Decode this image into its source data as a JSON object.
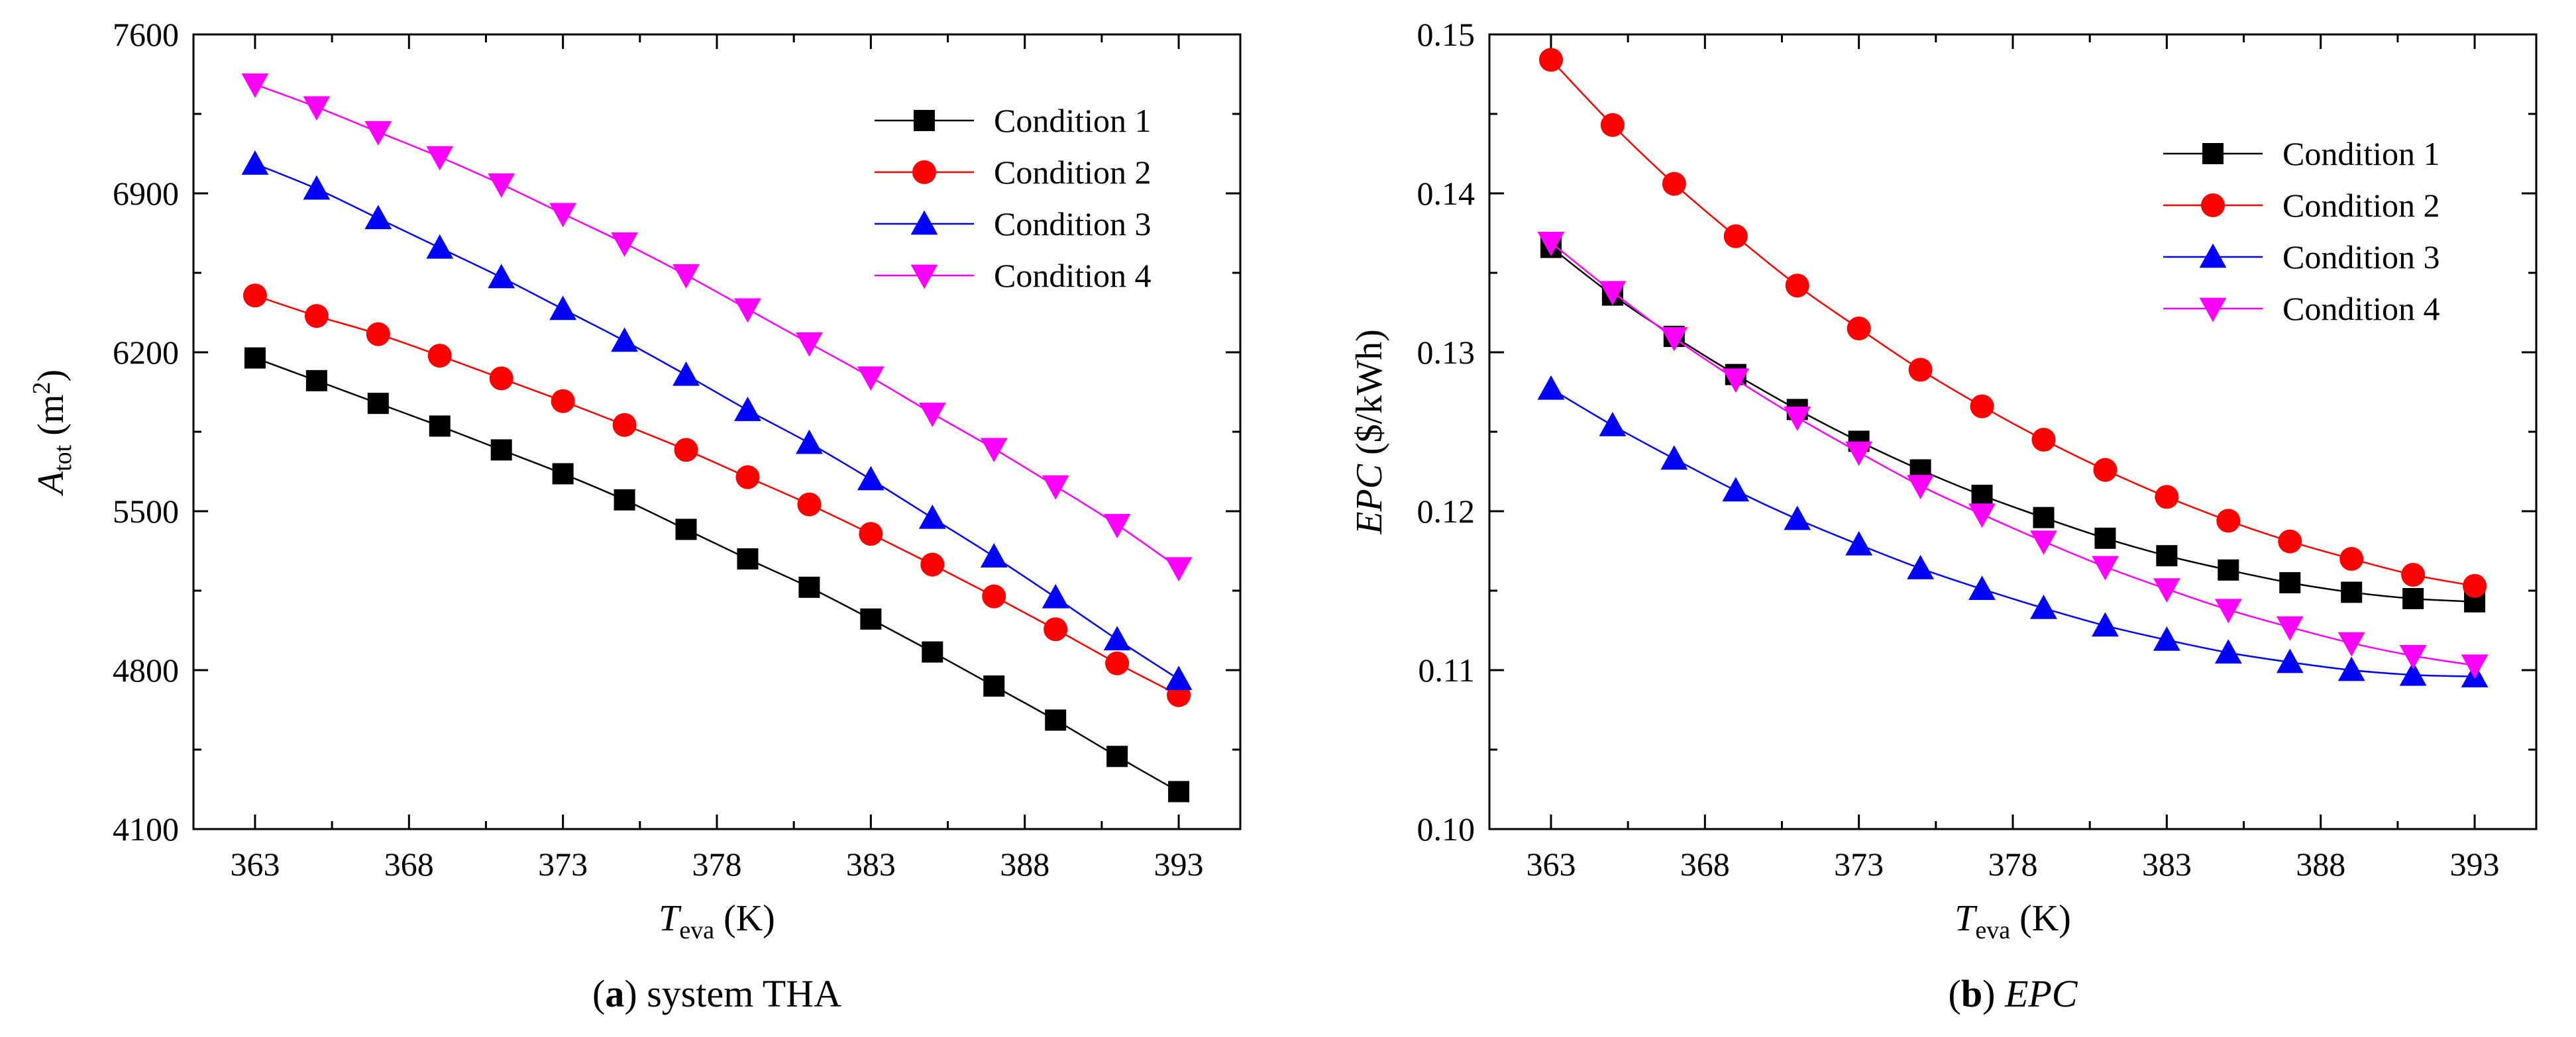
{
  "figure": {
    "panels": [
      {
        "caption": {
          "letter": "a",
          "text": "system THA",
          "text_italic": false
        },
        "ylabel": {
          "main": "A",
          "sub": "tot",
          "unit_prefix": " (m",
          "unit_sup": "2",
          "unit_suffix": ")"
        },
        "xlabel": {
          "main": "T",
          "sub": "eva",
          "unit": " (K)"
        }
      },
      {
        "caption": {
          "letter": "b",
          "text": "EPC",
          "text_italic": true
        },
        "ylabel": {
          "main": "EPC",
          "sub": "",
          "unit_prefix": " ($/kWh)",
          "unit_sup": "",
          "unit_suffix": ""
        },
        "xlabel": {
          "main": "T",
          "sub": "eva",
          "unit": " (K)"
        }
      }
    ]
  },
  "chart_data": [
    {
      "type": "line",
      "title": "",
      "xlabel": "T_eva (K)",
      "ylabel": "A_tot (m^2)",
      "xlim": [
        361,
        395
      ],
      "ylim": [
        4100,
        7600
      ],
      "xticks": [
        363,
        368,
        373,
        378,
        383,
        388,
        393
      ],
      "yticks": [
        4100,
        4800,
        5500,
        6200,
        6900,
        7600
      ],
      "ytick_decimals": 0,
      "legend_position": "top-right",
      "grid": false,
      "x": [
        363,
        365,
        367,
        369,
        371,
        373,
        375,
        377,
        379,
        381,
        383,
        385,
        387,
        389,
        391,
        393
      ],
      "series": [
        {
          "name": "Condition 1",
          "marker": "square",
          "color": "#000000",
          "values": [
            6175,
            6075,
            5975,
            5875,
            5770,
            5665,
            5550,
            5420,
            5290,
            5165,
            5025,
            4880,
            4730,
            4580,
            4420,
            4265
          ]
        },
        {
          "name": "Condition 2",
          "marker": "circle",
          "color": "#ff0000",
          "values": [
            6450,
            6360,
            6280,
            6185,
            6085,
            5985,
            5880,
            5770,
            5650,
            5530,
            5400,
            5265,
            5125,
            4980,
            4830,
            4690
          ]
        },
        {
          "name": "Condition 3",
          "marker": "triangle-up",
          "color": "#0000ff",
          "values": [
            7030,
            6920,
            6790,
            6660,
            6530,
            6390,
            6250,
            6100,
            5945,
            5800,
            5640,
            5470,
            5300,
            5120,
            4935,
            4760
          ]
        },
        {
          "name": "Condition 4",
          "marker": "triangle-down",
          "color": "#ff00ff",
          "values": [
            7380,
            7280,
            7170,
            7060,
            6940,
            6810,
            6680,
            6540,
            6390,
            6240,
            6090,
            5930,
            5775,
            5610,
            5440,
            5250
          ]
        }
      ]
    },
    {
      "type": "line",
      "title": "",
      "xlabel": "T_eva (K)",
      "ylabel": "EPC ($/kWh)",
      "xlim": [
        361,
        395
      ],
      "ylim": [
        0.1,
        0.15
      ],
      "xticks": [
        363,
        368,
        373,
        378,
        383,
        388,
        393
      ],
      "yticks": [
        0.1,
        0.11,
        0.12,
        0.13,
        0.14,
        0.15
      ],
      "ytick_decimals": 2,
      "legend_position": "top-right",
      "grid": false,
      "x": [
        363,
        365,
        367,
        369,
        371,
        373,
        375,
        377,
        379,
        381,
        383,
        385,
        387,
        389,
        391,
        393
      ],
      "series": [
        {
          "name": "Condition 1",
          "marker": "square",
          "color": "#000000",
          "values": [
            0.1366,
            0.1336,
            0.131,
            0.1286,
            0.1264,
            0.1244,
            0.1226,
            0.121,
            0.1196,
            0.1183,
            0.1172,
            0.1163,
            0.1155,
            0.1149,
            0.1145,
            0.1143
          ]
        },
        {
          "name": "Condition 2",
          "marker": "circle",
          "color": "#ff0000",
          "values": [
            0.1484,
            0.1443,
            0.1406,
            0.1373,
            0.1342,
            0.1315,
            0.1289,
            0.1266,
            0.1245,
            0.1226,
            0.1209,
            0.1194,
            0.1181,
            0.117,
            0.116,
            0.1153
          ]
        },
        {
          "name": "Condition 3",
          "marker": "triangle-up",
          "color": "#0000ff",
          "values": [
            0.1277,
            0.1254,
            0.1233,
            0.1213,
            0.1195,
            0.1179,
            0.1164,
            0.1151,
            0.1139,
            0.1128,
            0.1119,
            0.1111,
            0.1105,
            0.11,
            0.1097,
            0.1096
          ]
        },
        {
          "name": "Condition 4",
          "marker": "triangle-down",
          "color": "#ff00ff",
          "values": [
            0.1369,
            0.1338,
            0.1309,
            0.1283,
            0.1259,
            0.1237,
            0.1216,
            0.1198,
            0.1181,
            0.1165,
            0.1151,
            0.1138,
            0.1127,
            0.1117,
            0.1109,
            0.1103
          ]
        }
      ]
    }
  ]
}
